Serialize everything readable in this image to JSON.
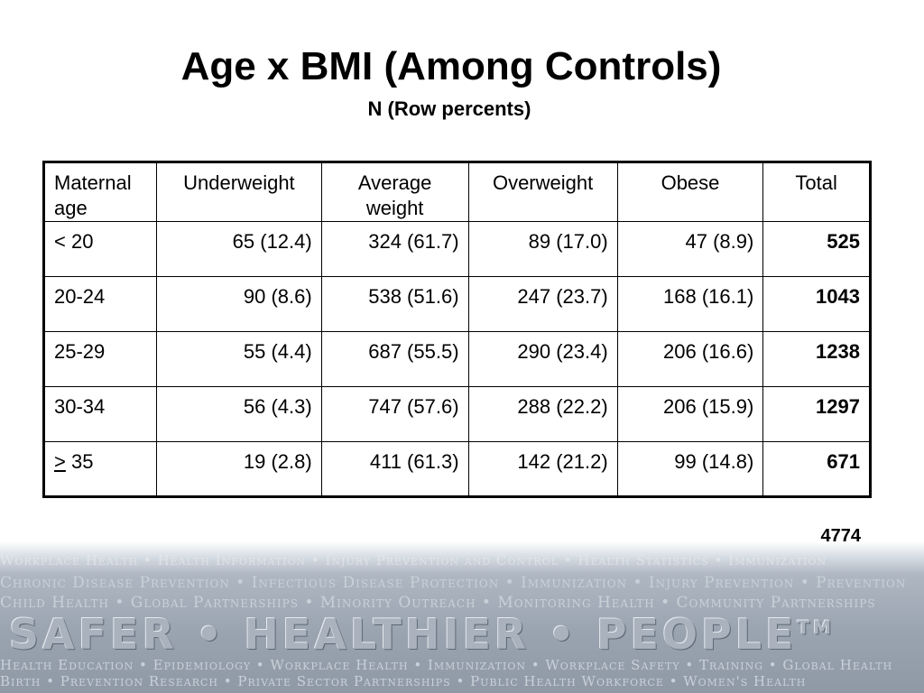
{
  "title": "Age x BMI (Among Controls)",
  "subtitle": "N (Row percents)",
  "table": {
    "headers": [
      "Maternal age",
      "Underweight",
      "Average weight",
      "Overweight",
      "Obese",
      "Total"
    ],
    "rows": [
      {
        "age": "< 20",
        "cells": [
          "65 (12.4)",
          "324 (61.7)",
          "89 (17.0)",
          "47 (8.9)"
        ],
        "total": "525"
      },
      {
        "age": "20-24",
        "cells": [
          "90 (8.6)",
          "538 (51.6)",
          "247 (23.7)",
          "168 (16.1)"
        ],
        "total": "1043"
      },
      {
        "age": "25-29",
        "cells": [
          "55 (4.4)",
          "687 (55.5)",
          "290 (23.4)",
          "206 (16.6)"
        ],
        "total": "1238"
      },
      {
        "age": "30-34",
        "cells": [
          "56 (4.3)",
          "747 (57.6)",
          "288 (22.2)",
          "206 (15.9)"
        ],
        "total": "1297"
      },
      {
        "age_symbol": ">",
        "age_value": " 35",
        "cells": [
          "19 (2.8)",
          "411 (61.3)",
          "142 (21.2)",
          "99 (14.8)"
        ],
        "total": "671"
      }
    ]
  },
  "grand_total": "4774",
  "banner": {
    "line1": "Workplace Health • Health Information • Injury Prevention and Control • Health Statistics • Immunization",
    "line2": "Chronic Disease Prevention • Infectious Disease Protection • Immunization • Injury Prevention • Prevention",
    "line3": "Child Health • Global Partnerships • Minority Outreach • Monitoring Health • Community Partnerships",
    "slogan": "SAFER • HEALTHIER • PEOPLE",
    "trademark": "TM",
    "line4": "Health Education • Epidemiology • Workplace Health • Immunization • Workplace Safety • Training • Global Health",
    "line5": "Birth • Prevention Research • Private Sector Partnerships • Public Health Workforce • Women's Health"
  }
}
